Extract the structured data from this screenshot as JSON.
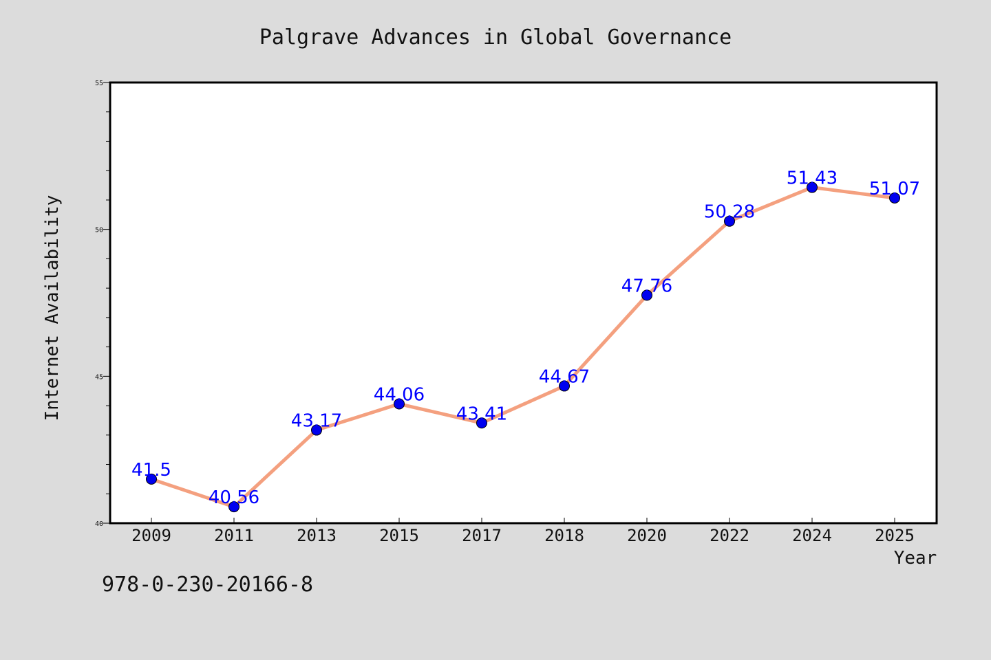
{
  "chart_data": {
    "type": "line",
    "title": "Palgrave Advances in Global Governance",
    "xlabel": "Year",
    "ylabel": "Internet Availability",
    "categories": [
      "2009",
      "2011",
      "2013",
      "2015",
      "2017",
      "2018",
      "2020",
      "2022",
      "2024",
      "2025"
    ],
    "series": [
      {
        "values": [
          41.5,
          40.56,
          43.17,
          44.06,
          43.41,
          44.67,
          47.76,
          50.28,
          51.43,
          51.07
        ],
        "data_labels": [
          "41.5",
          "40.56",
          "43.17",
          "44.06",
          "43.41",
          "44.67",
          "47.76",
          "50.28",
          "51.43",
          "51.07"
        ],
        "line_color": "#f4a07f",
        "marker_color": "#0000ee"
      }
    ],
    "ylim": [
      40,
      55
    ],
    "y_ticks": [
      "40",
      "45",
      "50",
      "55"
    ],
    "grid": false,
    "legend": "none",
    "label_color": "#0000ff"
  },
  "footer_text": "978-0-230-20166-8",
  "background_color": "#dcdcdc",
  "plot_background_color": "#ffffff"
}
